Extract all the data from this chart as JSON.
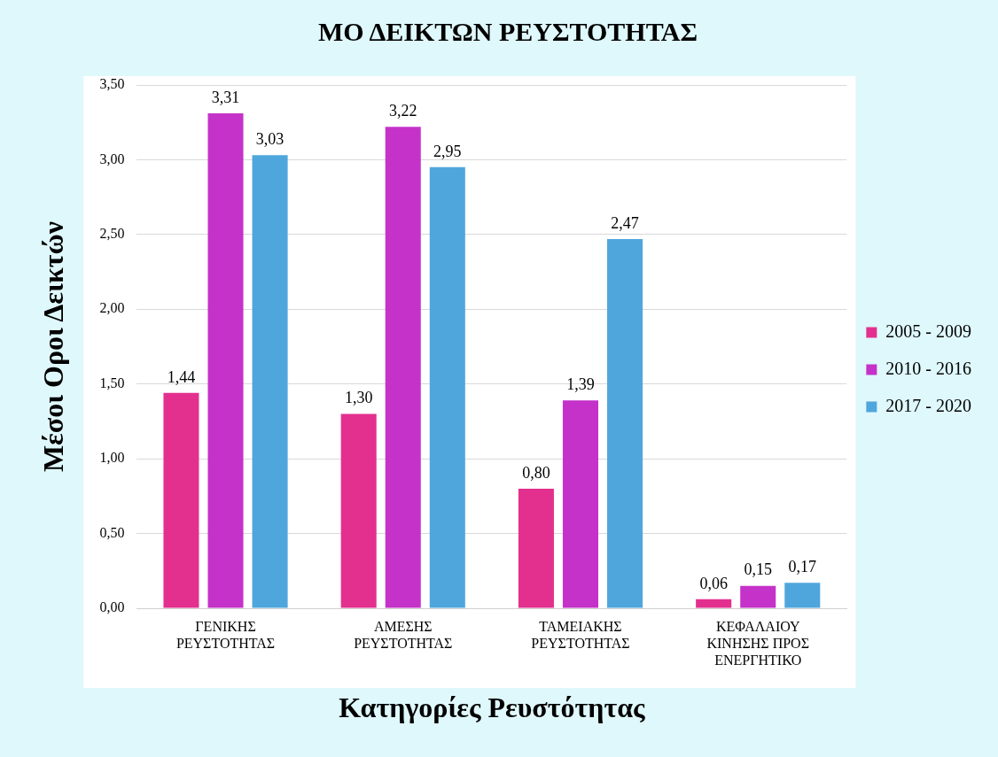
{
  "chart_data": {
    "type": "bar",
    "title": "ΜΟ ΔΕΙΚΤΩΝ ΡΕΥΣΤΟΤΗΤΑΣ",
    "xlabel": "Κατηγορίες Ρευστότητας",
    "ylabel": "Μέσοι Οροι Δεικτών",
    "categories": [
      "ΓΕΝΙΚΗΣ ΡΕΥΣΤΟΤΗΤΑΣ",
      "ΑΜΕΣΗΣ ΡΕΥΣΤΟΤΗΤΑΣ",
      "ΤΑΜΕΙΑΚΗΣ ΡΕΥΣΤΟΤΗΤΑΣ",
      "ΚΕΦΑΛΑΙΟΥ ΚΙΝΗΣΗΣ ΠΡΟΣ ΕΝΕΡΓΗΤΙΚΟ"
    ],
    "series": [
      {
        "name": "2005 - 2009",
        "color": "#e3308f",
        "values": [
          1.44,
          1.3,
          0.8,
          0.06
        ],
        "value_labels": [
          "1,44",
          "1,30",
          "0,80",
          "0,06"
        ]
      },
      {
        "name": "2010 - 2016",
        "color": "#c532c9",
        "values": [
          3.31,
          3.22,
          1.39,
          0.15
        ],
        "value_labels": [
          "3,31",
          "3,22",
          "1,39",
          "0,15"
        ]
      },
      {
        "name": "2017 - 2020",
        "color": "#4fa6dc",
        "values": [
          3.03,
          2.95,
          2.47,
          0.17
        ],
        "value_labels": [
          "3,03",
          "2,95",
          "2,47",
          "0,17"
        ]
      }
    ],
    "ylim": [
      0,
      3.5
    ],
    "yticks": [
      {
        "value": 0,
        "label": "0,00"
      },
      {
        "value": 0.5,
        "label": "0,50"
      },
      {
        "value": 1,
        "label": "1,00"
      },
      {
        "value": 1.5,
        "label": "1,50"
      },
      {
        "value": 2,
        "label": "2,00"
      },
      {
        "value": 2.5,
        "label": "2,50"
      },
      {
        "value": 3,
        "label": "3,00"
      },
      {
        "value": 3.5,
        "label": "3,50"
      }
    ],
    "grid": "y",
    "legend": "right"
  }
}
